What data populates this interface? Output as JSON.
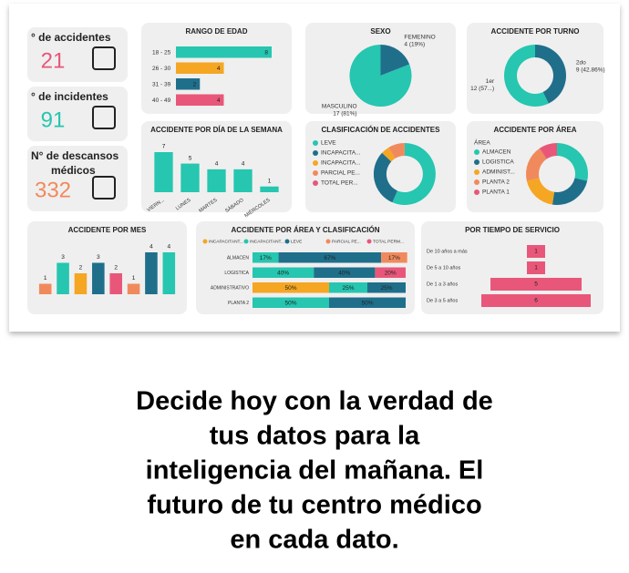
{
  "kpis": [
    {
      "label": "° de accidentes",
      "value": 21
    },
    {
      "label": "° de incidentes",
      "value": 91
    },
    {
      "label": "N° de descansos médicos",
      "value": 332
    }
  ],
  "chart_data": [
    {
      "type": "bar",
      "orientation": "horizontal",
      "title": "RANGO DE EDAD",
      "categories": [
        "18 - 25",
        "26 - 30",
        "31 - 39",
        "40 - 49"
      ],
      "values": [
        8,
        4,
        2,
        4
      ],
      "colors": [
        "#26c6b0",
        "#f5a623",
        "#1f6f8b",
        "#e8577a"
      ]
    },
    {
      "type": "pie",
      "title": "SEXO",
      "categories": [
        "FEMENINO",
        "MASCULINO"
      ],
      "values": [
        4,
        17
      ],
      "value_labels": [
        "4 (19%)",
        "17 (81%)"
      ],
      "colors": [
        "#1f6f8b",
        "#26c6b0"
      ]
    },
    {
      "type": "pie",
      "donut": true,
      "title": "ACCIDENTE POR TURNO",
      "categories": [
        "2do",
        "1er"
      ],
      "values": [
        9,
        12
      ],
      "value_labels": [
        "9 (42.86%)",
        "12 (57...)"
      ],
      "colors": [
        "#1f6f8b",
        "#26c6b0"
      ]
    },
    {
      "type": "bar",
      "orientation": "vertical",
      "title": "ACCIDENTE POR DÍA DE LA SEMANA",
      "categories": [
        "VIERN...",
        "LUNES",
        "MARTES",
        "SÁBADO",
        "MIÉRCOLES"
      ],
      "values": [
        7,
        5,
        4,
        4,
        1
      ],
      "color": "#26c6b0"
    },
    {
      "type": "pie",
      "donut": true,
      "legend": true,
      "title": "CLASIFICACIÓN DE ACCIDENTES",
      "categories": [
        "LEVE",
        "INCAPACITA...",
        "INCAPACITA...",
        "PARCIAL PE...",
        "TOTAL PER..."
      ],
      "values": [
        13,
        7,
        1,
        2,
        0
      ],
      "colors": [
        "#26c6b0",
        "#1f6f8b",
        "#f5a623",
        "#f08a5d",
        "#e8577a"
      ]
    },
    {
      "type": "pie",
      "donut": true,
      "legend": true,
      "title": "ACCIDENTE POR ÁREA",
      "legend_title": "ÁREA",
      "categories": [
        "ALMACEN",
        "LOGISTICA",
        "ADMINIST...",
        "PLANTA 2",
        "PLANTA 1"
      ],
      "values": [
        6,
        5,
        4,
        4,
        2
      ],
      "colors": [
        "#26c6b0",
        "#1f6f8b",
        "#f5a623",
        "#f08a5d",
        "#e8577a"
      ]
    },
    {
      "type": "bar",
      "orientation": "vertical",
      "title": "ACCIDENTE POR MES",
      "categories": [
        null,
        null,
        null,
        null,
        null,
        null,
        null,
        null
      ],
      "values": [
        1,
        3,
        2,
        3,
        2,
        1,
        4,
        4
      ],
      "colors": [
        "#f08a5d",
        "#26c6b0",
        "#f5a623",
        "#1f6f8b",
        "#e8577a",
        "#f08a5d",
        "#1f6f8b",
        "#26c6b0"
      ]
    },
    {
      "type": "bar",
      "orientation": "horizontal",
      "stacked": true,
      "title": "ACCIDENTE POR ÁREA Y CLASIFICACIÓN",
      "xlim": [
        0,
        100
      ],
      "categories": [
        "ALMACEN",
        "LOGISTICA",
        "ADMINISTRATIVO",
        "PLANTA 2"
      ],
      "series": [
        {
          "name": "INCAPACITANT...",
          "color": "#f5a623",
          "values": [
            null,
            null,
            50,
            null
          ],
          "value_labels": [
            null,
            null,
            "50%",
            null
          ]
        },
        {
          "name": "INCAPACITANT...",
          "color": "#26c6b0",
          "values": [
            17,
            40,
            25,
            50
          ],
          "value_labels": [
            "17%",
            "40%",
            "25%",
            "50%"
          ]
        },
        {
          "name": "LEVE",
          "color": "#1f6f8b",
          "values": [
            67,
            40,
            25,
            50
          ],
          "value_labels": [
            "67%",
            "40%",
            "25%",
            "50%"
          ]
        },
        {
          "name": "PARCIAL PE...",
          "color": "#f08a5d",
          "values": [
            17,
            null,
            null,
            null
          ],
          "value_labels": [
            "17%",
            null,
            null,
            null
          ]
        },
        {
          "name": "TOTAL PERM...",
          "color": "#e8577a",
          "values": [
            null,
            20,
            null,
            null
          ],
          "value_labels": [
            null,
            "20%",
            null,
            null
          ]
        }
      ]
    },
    {
      "type": "funnel",
      "title": "POR TIEMPO DE SERVICIO",
      "categories": [
        "De 10 años a más",
        "De 5 a 10 años",
        "De 1 a 3 años",
        "De 3 a 5 años"
      ],
      "values": [
        1,
        1,
        5,
        6
      ],
      "color": "#e8577a"
    }
  ],
  "caption": {
    "lines": [
      "Decide hoy con la verdad de",
      "tus datos para la",
      "inteligencia del mañana. El",
      "futuro de tu centro médico",
      "en cada dato."
    ]
  }
}
